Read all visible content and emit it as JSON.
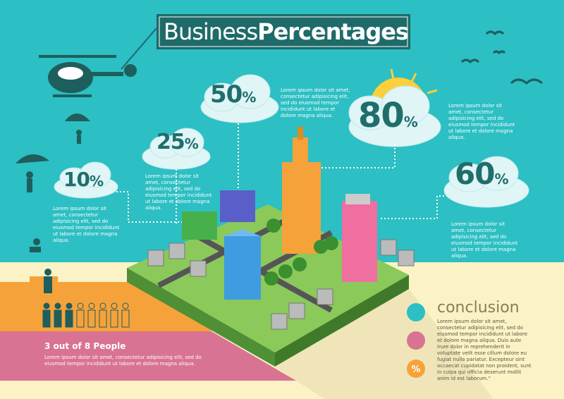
{
  "header": {
    "title_light": "Business",
    "title_bold": "Percentages"
  },
  "stats": [
    {
      "value": "50",
      "unit": "%",
      "text": "Lorem ipsum dolor sit amet, consectetur adipisicing elit, sed do eiusmod tempor incididunt ut labore et dolore magna aliqua."
    },
    {
      "value": "25",
      "unit": "%",
      "text": "Lorem ipsum dolor sit amet, consectetur adipisicing elit, sed do eiusmod tempor incididunt ut labore et dolore magna aliqua."
    },
    {
      "value": "10",
      "unit": "%",
      "text": "Lorem ipsum dolor sit amet, consectetur adipisicing elit, sed do eiusmod tempor incididunt ut labore et dolore magna aliqua."
    },
    {
      "value": "80",
      "unit": "%",
      "text": "Lorem ipsum dolor sit amet, consectetur adipisicing elit, sed do eiusmod tempor incididunt ut labore et dolore magna aliqua."
    },
    {
      "value": "60",
      "unit": "%",
      "text": "Lorem ipsum dolor sit amet, consectetur adipisicing elit, sed do eiusmod tempor incididunt ut labore et dolore magna aliqua."
    }
  ],
  "people": {
    "title": "3 out of 8 People",
    "text": "Lorem ipsum dolor sit amet, consectetur adipisicing elit, sed do eiusmod tempor incididunt ut labore et dolore magna aliqua."
  },
  "conclusion": {
    "title": "conclusion",
    "icon_label": "%",
    "text": "Lorem ipsum dolor sit amet, consectetur adipisicing elit, sed do eiusmod tempor incididunt ut labore et dolore magna aliqua. Duis aute irure dolor in reprehenderit in voluptate velit esse cillum dolore eu fugiat nulla pariatur. Excepteur sint occaecat cupidatat non proident, sunt in culpa qui officia deserunt mollit anim id est laborum.\""
  }
}
